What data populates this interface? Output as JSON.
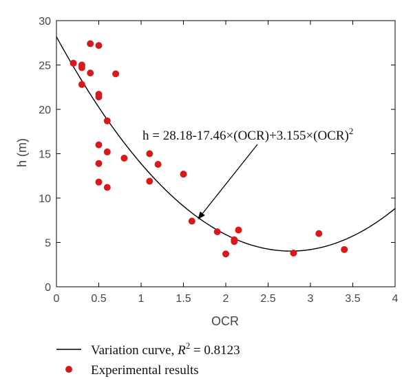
{
  "chart_data": {
    "type": "scatter",
    "xlabel": "OCR",
    "ylabel": "h (m)",
    "xlim": [
      0,
      4
    ],
    "ylim": [
      0,
      30
    ],
    "xticks": [
      "0",
      "0.5",
      "1",
      "1.5",
      "2",
      "2.5",
      "3",
      "3.5",
      "4"
    ],
    "yticks": [
      "0",
      "5",
      "10",
      "15",
      "20",
      "25",
      "30"
    ],
    "grid": false,
    "points_color": "#d7191c",
    "curve_color": "#000000",
    "curve": {
      "a": 28.18,
      "b": -17.46,
      "c": 3.155,
      "x_range": [
        0,
        4
      ]
    },
    "annotation": {
      "text": "h = 28.18-17.46×(OCR)+3.155×(OCR)",
      "superscript": "2",
      "arrow_target": [
        1.67,
        7.6
      ]
    },
    "legend": {
      "placement": "bottom-left",
      "entries": [
        {
          "label": "Variation curve, ",
          "r2_symbol": "R",
          "r2_sup": "2",
          "r2_value": " = 0.8123"
        },
        {
          "label": "Experimental results"
        }
      ]
    },
    "series": [
      {
        "name": "Experimental results",
        "points": [
          [
            0.2,
            25.2
          ],
          [
            0.3,
            25.0
          ],
          [
            0.3,
            24.7
          ],
          [
            0.3,
            22.8
          ],
          [
            0.4,
            27.4
          ],
          [
            0.4,
            24.1
          ],
          [
            0.5,
            27.2
          ],
          [
            0.5,
            21.7
          ],
          [
            0.5,
            21.4
          ],
          [
            0.5,
            16.0
          ],
          [
            0.5,
            13.9
          ],
          [
            0.5,
            11.8
          ],
          [
            0.6,
            18.7
          ],
          [
            0.6,
            15.2
          ],
          [
            0.6,
            11.2
          ],
          [
            0.7,
            24.0
          ],
          [
            0.8,
            14.5
          ],
          [
            1.1,
            15.0
          ],
          [
            1.1,
            11.9
          ],
          [
            1.2,
            13.8
          ],
          [
            1.5,
            12.7
          ],
          [
            1.6,
            7.4
          ],
          [
            1.9,
            6.2
          ],
          [
            2.0,
            3.7
          ],
          [
            2.1,
            5.3
          ],
          [
            2.1,
            5.1
          ],
          [
            2.15,
            6.4
          ],
          [
            2.8,
            3.8
          ],
          [
            3.1,
            6.0
          ],
          [
            3.4,
            4.2
          ]
        ]
      }
    ]
  }
}
